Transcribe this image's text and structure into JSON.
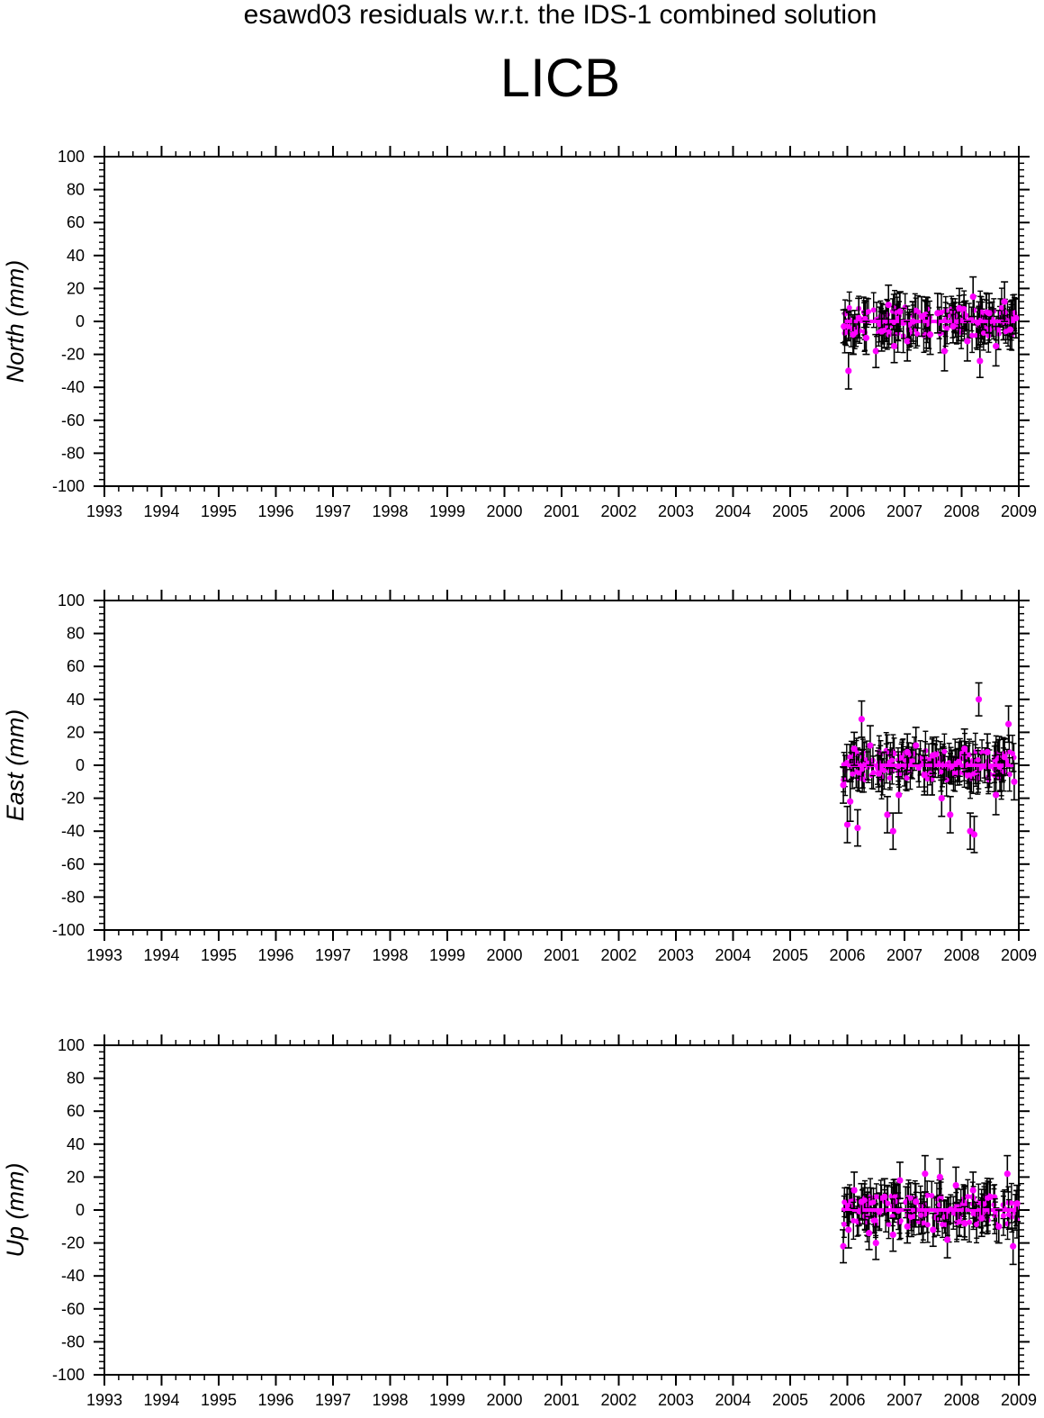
{
  "title": "esawd03 residuals w.r.t. the IDS-1 combined solution",
  "station": "LICB",
  "colors": {
    "marker": "#ff00ff",
    "errorbar": "#000000",
    "axis": "#000000",
    "background": "#ffffff"
  },
  "chart_data": [
    {
      "type": "scatter",
      "name": "north",
      "ylabel": "North (mm)",
      "xlim": [
        1993,
        2009
      ],
      "ylim": [
        -100,
        100
      ],
      "x_ticks": [
        "1993",
        "1994",
        "1995",
        "1996",
        "1997",
        "1998",
        "1999",
        "2000",
        "2001",
        "2002",
        "2003",
        "2004",
        "2005",
        "2006",
        "2007",
        "2008",
        "2009"
      ],
      "y_ticks": [
        "100",
        "80",
        "60",
        "40",
        "20",
        "0",
        "-20",
        "-40",
        "-60",
        "-80",
        "-100"
      ],
      "grid": false,
      "series": [
        {
          "x": [
            2005.94,
            2006.02,
            2006.1,
            2006.2,
            2006.33,
            2006.5,
            2006.6,
            2006.72,
            2006.82,
            2006.92,
            2007.05,
            2007.15,
            2007.3,
            2007.45,
            2007.58,
            2007.7,
            2007.85,
            2007.96,
            2008.1,
            2008.2,
            2008.32,
            2008.48,
            2008.6,
            2008.75,
            2008.85,
            2008.95
          ],
          "y": [
            -3,
            -30,
            -8,
            2,
            -10,
            -18,
            -6,
            10,
            -15,
            6,
            -12,
            0,
            3,
            -8,
            5,
            -18,
            -3,
            8,
            -12,
            15,
            -24,
            5,
            -15,
            12,
            -5,
            2
          ],
          "err": [
            10,
            11,
            12,
            12,
            10,
            10,
            12,
            12,
            10,
            12,
            12,
            12,
            12,
            12,
            12,
            12,
            10,
            12,
            12,
            12,
            10,
            12,
            12,
            12,
            12,
            12
          ]
        }
      ]
    },
    {
      "type": "scatter",
      "name": "east",
      "ylabel": "East (mm)",
      "xlim": [
        1993,
        2009
      ],
      "ylim": [
        -100,
        100
      ],
      "x_ticks": [
        "1993",
        "1994",
        "1995",
        "1996",
        "1997",
        "1998",
        "1999",
        "2000",
        "2001",
        "2002",
        "2003",
        "2004",
        "2005",
        "2006",
        "2007",
        "2008",
        "2009"
      ],
      "y_ticks": [
        "100",
        "80",
        "60",
        "40",
        "20",
        "0",
        "-20",
        "-40",
        "-60",
        "-80",
        "-100"
      ],
      "grid": false,
      "series": [
        {
          "x": [
            2005.93,
            2006.0,
            2006.05,
            2006.12,
            2006.18,
            2006.25,
            2006.4,
            2006.55,
            2006.7,
            2006.8,
            2006.9,
            2007.05,
            2007.2,
            2007.35,
            2007.5,
            2007.65,
            2007.8,
            2007.95,
            2008.05,
            2008.15,
            2008.22,
            2008.3,
            2008.45,
            2008.6,
            2008.75,
            2008.82,
            2008.92
          ],
          "y": [
            -12,
            -36,
            -22,
            10,
            -38,
            28,
            12,
            -5,
            -30,
            -40,
            -18,
            8,
            12,
            -6,
            6,
            -20,
            -30,
            2,
            10,
            -40,
            -42,
            40,
            8,
            -18,
            5,
            25,
            -10
          ],
          "err": [
            11,
            11,
            12,
            10,
            11,
            11,
            12,
            11,
            11,
            11,
            11,
            11,
            11,
            12,
            11,
            11,
            11,
            12,
            12,
            11,
            11,
            10,
            11,
            12,
            11,
            11,
            11
          ]
        }
      ]
    },
    {
      "type": "scatter",
      "name": "up",
      "ylabel": "Up (mm)",
      "xlim": [
        1993,
        2009
      ],
      "ylim": [
        -100,
        100
      ],
      "x_ticks": [
        "1993",
        "1994",
        "1995",
        "1996",
        "1997",
        "1998",
        "1999",
        "2000",
        "2001",
        "2002",
        "2003",
        "2004",
        "2005",
        "2006",
        "2007",
        "2008",
        "2009"
      ],
      "y_ticks": [
        "100",
        "80",
        "60",
        "40",
        "20",
        "0",
        "-20",
        "-40",
        "-60",
        "-80",
        "-100"
      ],
      "grid": false,
      "series": [
        {
          "x": [
            2005.93,
            2006.02,
            2006.12,
            2006.25,
            2006.38,
            2006.5,
            2006.65,
            2006.8,
            2006.92,
            2007.05,
            2007.2,
            2007.36,
            2007.5,
            2007.62,
            2007.75,
            2007.9,
            2008.05,
            2008.2,
            2008.35,
            2008.5,
            2008.65,
            2008.8,
            2008.9,
            2008.97
          ],
          "y": [
            -22,
            -12,
            12,
            5,
            -14,
            -20,
            8,
            -15,
            18,
            -10,
            5,
            22,
            -12,
            20,
            -18,
            15,
            -8,
            12,
            -5,
            8,
            -10,
            22,
            -22,
            4
          ],
          "err": [
            10,
            11,
            11,
            11,
            10,
            10,
            11,
            10,
            11,
            10,
            11,
            11,
            10,
            11,
            11,
            11,
            10,
            11,
            11,
            11,
            10,
            11,
            11,
            11
          ]
        }
      ]
    }
  ]
}
